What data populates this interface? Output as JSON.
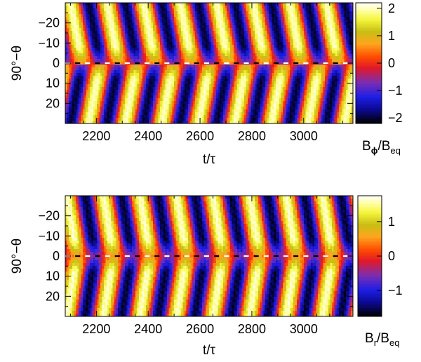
{
  "chart_data": [
    {
      "type": "heatmap",
      "title": "",
      "ylabel": "90°−θ",
      "xlabel": "t/τ",
      "x_ticks": [
        "2200",
        "2400",
        "2600",
        "2800",
        "3000"
      ],
      "x_tick_values": [
        2200,
        2400,
        2600,
        2800,
        3000
      ],
      "xlim": [
        2080,
        3190
      ],
      "y_ticks": [
        "−20",
        "−10",
        "0",
        "10",
        "20"
      ],
      "y_tick_values": [
        -20,
        -10,
        0,
        10,
        20
      ],
      "ylim": [
        -30,
        30
      ],
      "y_inverted": true,
      "colorbar": {
        "label_main": "B",
        "label_sub1": "ϕ",
        "label_mid": "/B",
        "label_sub2": "eq",
        "ticks": [
          "2",
          "1",
          "0",
          "−1",
          "−2"
        ],
        "tick_values": [
          2,
          1,
          0,
          -1,
          -2
        ],
        "range": [
          -2.2,
          2.2
        ]
      },
      "field": {
        "amplitude": 2.0,
        "period": 141.0,
        "phase_origin": 2110,
        "drift_per_degree": 1.5,
        "hemisphere_antisymmetric": true
      },
      "equator_line": "dashed"
    },
    {
      "type": "heatmap",
      "title": "",
      "ylabel": "90°−θ",
      "xlabel": "t/τ",
      "x_ticks": [
        "2200",
        "2400",
        "2600",
        "2800",
        "3000"
      ],
      "x_tick_values": [
        2200,
        2400,
        2600,
        2800,
        3000
      ],
      "xlim": [
        2080,
        3190
      ],
      "y_ticks": [
        "−20",
        "−10",
        "0",
        "10",
        "20"
      ],
      "y_tick_values": [
        -20,
        -10,
        0,
        10,
        20
      ],
      "ylim": [
        -30,
        30
      ],
      "y_inverted": true,
      "colorbar": {
        "label_main": "B",
        "label_sub1": "r",
        "label_mid": "/B",
        "label_sub2": "eq",
        "ticks": [
          "1",
          "0",
          "−1"
        ],
        "tick_values": [
          1,
          0,
          -1
        ],
        "range": [
          -1.75,
          1.75
        ]
      },
      "field": {
        "amplitude": 1.6,
        "period": 141.0,
        "phase_origin": 2090,
        "drift_per_degree": 1.3,
        "hemisphere_antisymmetric": false
      },
      "equator_line": "dashed"
    }
  ]
}
